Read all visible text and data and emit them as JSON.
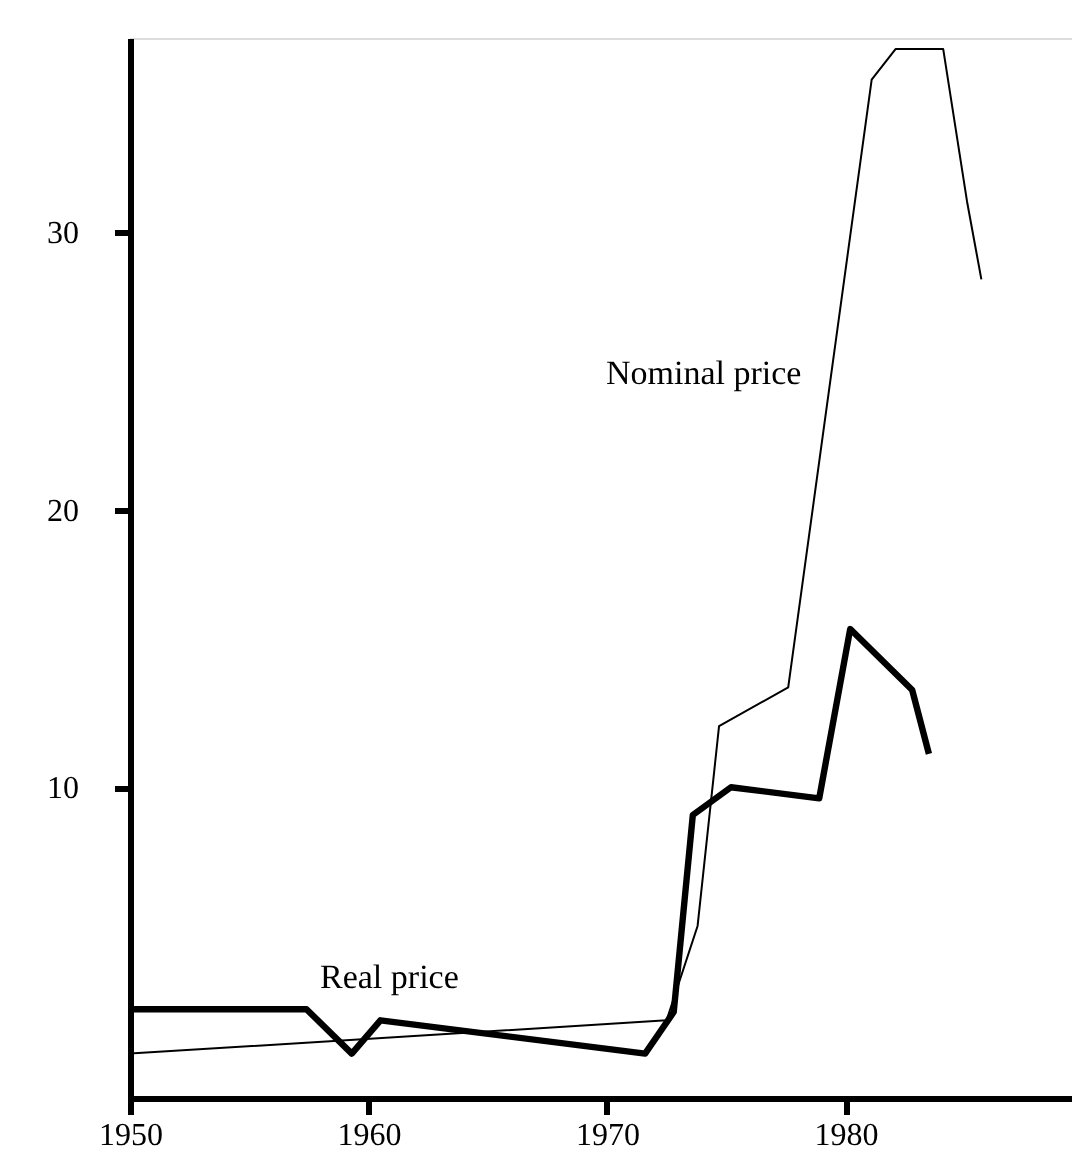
{
  "chart_data": {
    "type": "line",
    "xlim": [
      1950,
      1989.5
    ],
    "ylim": [
      -1.2,
      37
    ],
    "xticks": [
      1950,
      1960,
      1970,
      1980
    ],
    "yticks": [
      10,
      20,
      30
    ],
    "grid": false,
    "marker": "none",
    "line_style": "solid",
    "series": [
      {
        "name": "Real price",
        "color": "#000000",
        "x": [
          1950,
          1957.4,
          1959.3,
          1960.5,
          1971.6,
          1972.8,
          1973.6,
          1975.2,
          1978.9,
          1980.2,
          1982.8,
          1983.5
        ],
        "values": [
          2.0,
          2.0,
          0.4,
          1.6,
          0.4,
          1.9,
          9.0,
          10.0,
          9.6,
          15.7,
          13.5,
          11.2
        ]
      },
      {
        "name": "Nominal price",
        "color": "#000000",
        "x": [
          1950,
          1972.5,
          1973.8,
          1974.7,
          1977.6,
          1981.1,
          1982.1,
          1984.1,
          1985.1,
          1985.7
        ],
        "values": [
          0.4,
          1.6,
          5.0,
          12.2,
          13.6,
          35.5,
          36.6,
          36.6,
          31.1,
          28.3
        ]
      }
    ]
  }
}
